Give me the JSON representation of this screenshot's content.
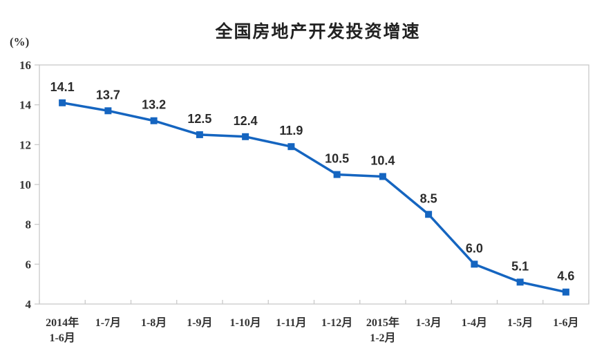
{
  "page": {
    "background": "#ffffff"
  },
  "chart_data": {
    "type": "line",
    "title": "全国房地产开发投资增速",
    "ylabel": "(%)",
    "xlabel": "",
    "categories": [
      "2014年\n1-6月",
      "1-7月",
      "1-8月",
      "1-9月",
      "1-10月",
      "1-11月",
      "1-12月",
      "2015年\n1-2月",
      "1-3月",
      "1-4月",
      "1-5月",
      "1-6月"
    ],
    "values": [
      14.1,
      13.7,
      13.2,
      12.5,
      12.4,
      11.9,
      10.5,
      10.4,
      8.5,
      6.0,
      5.1,
      4.6
    ],
    "data_labels": [
      "14.1",
      "13.7",
      "13.2",
      "12.5",
      "12.4",
      "11.9",
      "10.5",
      "10.4",
      "8.5",
      "6.0",
      "5.1",
      "4.6"
    ],
    "ylim": [
      4,
      16
    ],
    "yticks": [
      4,
      6,
      8,
      10,
      12,
      14,
      16
    ],
    "grid": false,
    "legend_position": "none",
    "marker": "square",
    "line_color": "#1565C0",
    "marker_color": "#1565C0",
    "axis_color": "#C9C9C9",
    "title_color": "#222222",
    "axis_text_color": "#333333",
    "data_label_color": "#2B2B2B"
  }
}
